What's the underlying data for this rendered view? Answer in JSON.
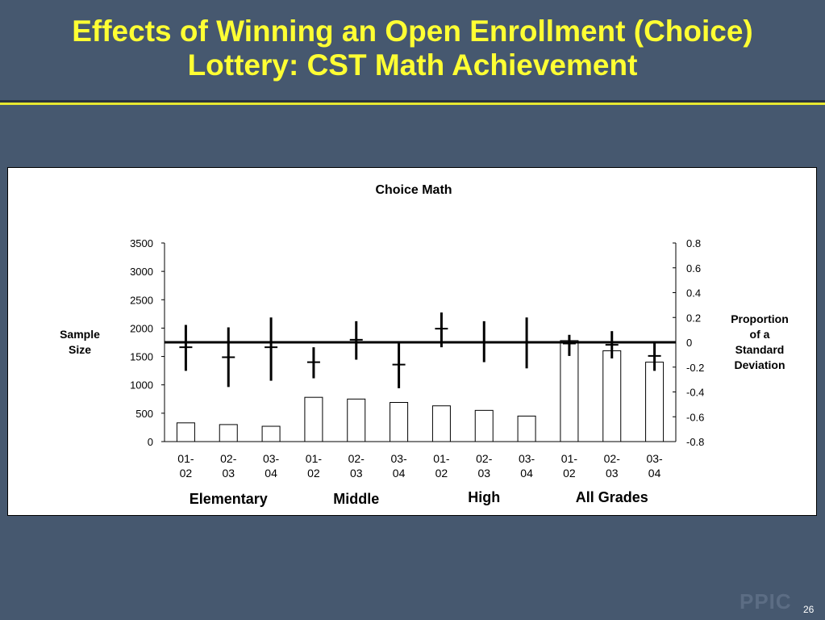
{
  "slide": {
    "title_line1": "Effects of Winning an Open Enrollment (Choice)",
    "title_line2": "Lottery: CST Math Achievement",
    "watermark": "PPIC",
    "page_number": "26"
  },
  "chart_data": {
    "type": "bar",
    "title": "Choice Math",
    "categories": [
      "01-02",
      "02-03",
      "03-04",
      "01-02",
      "02-03",
      "03-04",
      "01-02",
      "02-03",
      "03-04",
      "01-02",
      "02-03",
      "03-04"
    ],
    "category_lines": [
      [
        "01-",
        "02"
      ],
      [
        "02-",
        "03"
      ],
      [
        "03-",
        "04"
      ],
      [
        "01-",
        "02"
      ],
      [
        "02-",
        "03"
      ],
      [
        "03-",
        "04"
      ],
      [
        "01-",
        "02"
      ],
      [
        "02-",
        "03"
      ],
      [
        "03-",
        "04"
      ],
      [
        "01-",
        "02"
      ],
      [
        "02-",
        "03"
      ],
      [
        "03-",
        "04"
      ]
    ],
    "groups": [
      {
        "label": "Elementary",
        "span": [
          0,
          2
        ]
      },
      {
        "label": "Middle",
        "span": [
          3,
          5
        ]
      },
      {
        "label": "High",
        "span": [
          6,
          8
        ]
      },
      {
        "label": "All Grades",
        "span": [
          9,
          11
        ]
      }
    ],
    "left_axis": {
      "label_lines": [
        "Sample",
        "Size"
      ],
      "ylim": [
        0,
        3500
      ],
      "ticks": [
        0,
        500,
        1000,
        1500,
        2000,
        2500,
        3000,
        3500
      ]
    },
    "right_axis": {
      "label_lines": [
        "Proportion",
        "of a",
        "Standard",
        "Deviation"
      ],
      "ylim": [
        -0.8,
        0.8
      ],
      "ticks": [
        "-0.8",
        "-0.6",
        "-0.4",
        "-0.2",
        "0",
        "0.2",
        "0.4",
        "0.6",
        "0.8"
      ]
    },
    "bars": {
      "axis": "left",
      "values": [
        330,
        300,
        270,
        780,
        750,
        690,
        630,
        550,
        450,
        1780,
        1600,
        1400
      ]
    },
    "effects": {
      "axis": "right",
      "estimates": [
        -0.04,
        -0.12,
        -0.04,
        -0.16,
        0.02,
        -0.18,
        0.11,
        0.0,
        0.0,
        -0.01,
        -0.02,
        -0.11
      ],
      "lower": [
        -0.23,
        -0.36,
        -0.31,
        -0.29,
        -0.14,
        -0.37,
        -0.04,
        -0.16,
        -0.21,
        -0.11,
        -0.13,
        -0.23
      ],
      "upper": [
        0.14,
        0.12,
        0.2,
        -0.04,
        0.17,
        0.0,
        0.24,
        0.17,
        0.2,
        0.06,
        0.09,
        0.0
      ]
    },
    "zero_line_value": 0,
    "grid": false
  }
}
